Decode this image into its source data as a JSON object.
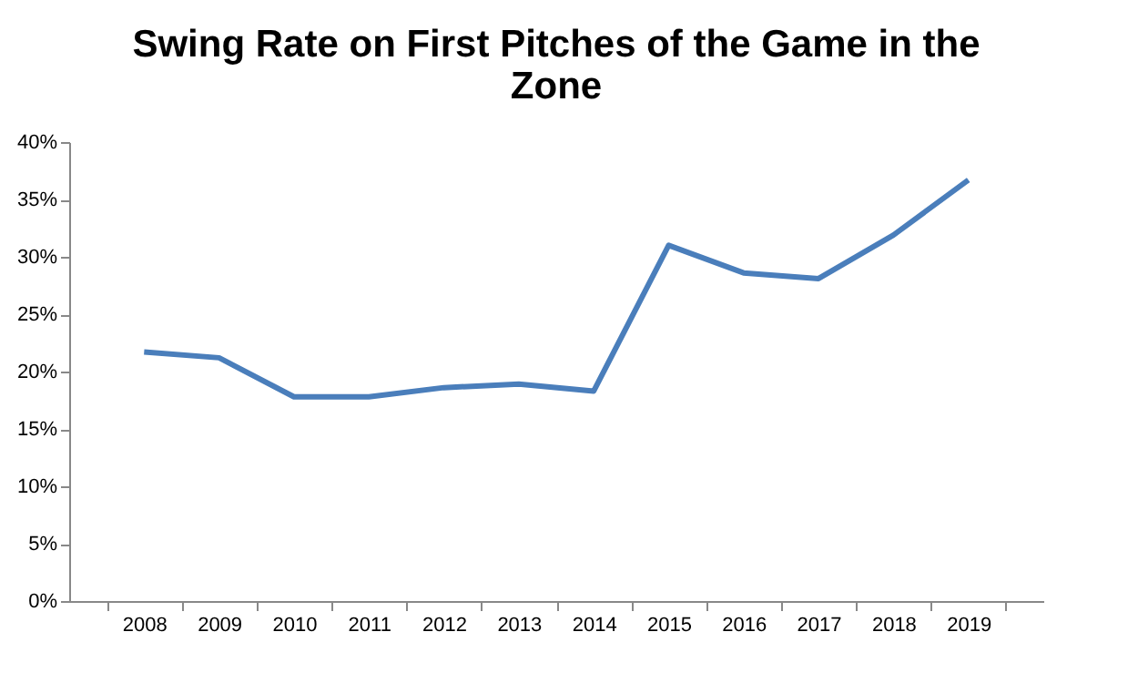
{
  "chart_data": {
    "type": "line",
    "title": "Swing Rate on First Pitches of the Game in the Zone",
    "categories": [
      "2008",
      "2009",
      "2010",
      "2011",
      "2012",
      "2013",
      "2014",
      "2015",
      "2016",
      "2017",
      "2018",
      "2019"
    ],
    "series": [
      {
        "color": "#4a7ebb",
        "values": [
          21.7,
          21.2,
          17.8,
          17.8,
          18.6,
          18.9,
          18.3,
          31.0,
          28.6,
          28.1,
          31.9,
          36.7
        ]
      }
    ],
    "ylim": [
      0,
      40
    ],
    "yticks": [
      {
        "value": 0,
        "label": "0%"
      },
      {
        "value": 5,
        "label": "5%"
      },
      {
        "value": 10,
        "label": "10%"
      },
      {
        "value": 15,
        "label": "15%"
      },
      {
        "value": 20,
        "label": "20%"
      },
      {
        "value": 25,
        "label": "25%"
      },
      {
        "value": 30,
        "label": "30%"
      },
      {
        "value": 35,
        "label": "35%"
      },
      {
        "value": 40,
        "label": "40%"
      }
    ],
    "line_style": "solid"
  }
}
